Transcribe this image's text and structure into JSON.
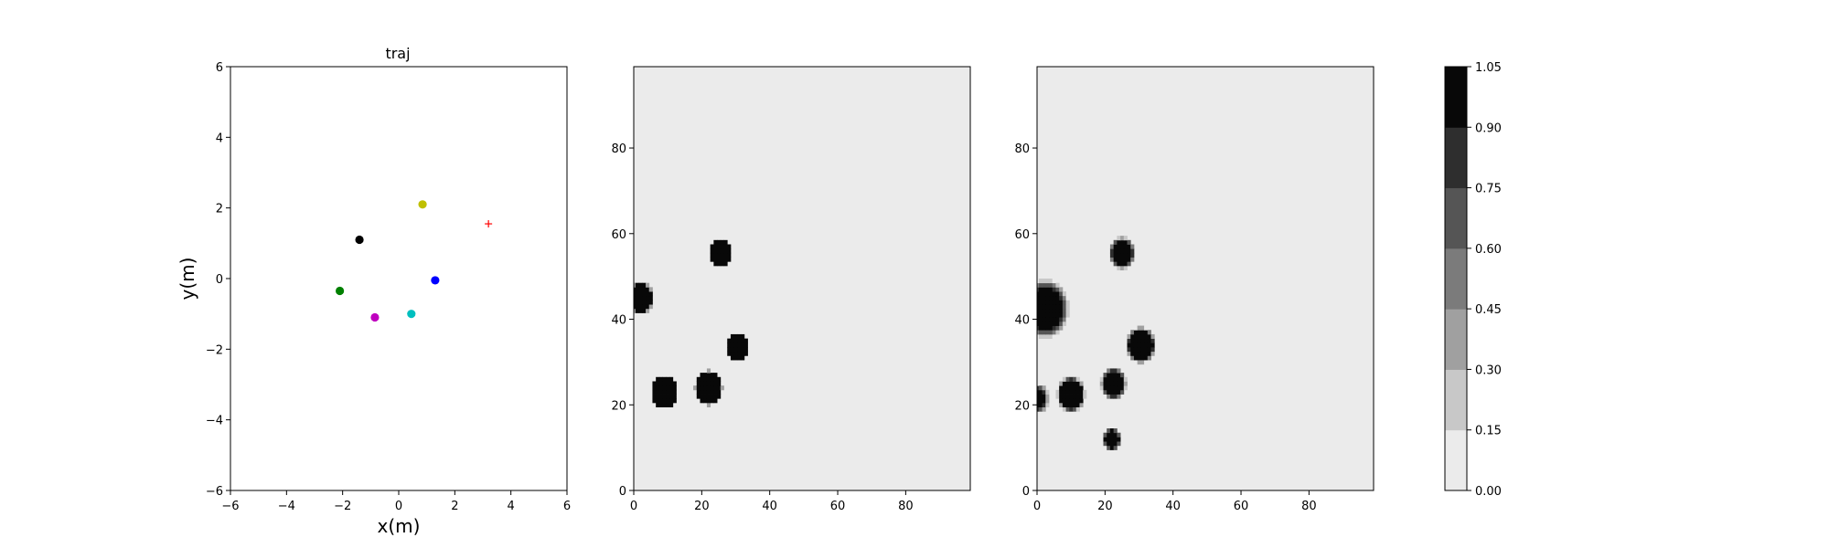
{
  "figure": {
    "background": "#ffffff",
    "axis_color": "#000000"
  },
  "chart_data": [
    {
      "type": "scatter",
      "title": "traj",
      "xlabel": "x(m)",
      "ylabel": "y(m)",
      "xlim": [
        -6,
        6
      ],
      "ylim": [
        -6,
        6
      ],
      "xticks": [
        -6,
        -4,
        -2,
        0,
        2,
        4,
        6
      ],
      "yticks": [
        -6,
        -4,
        -2,
        0,
        2,
        4,
        6
      ],
      "grid": false,
      "points": [
        {
          "x": 0.85,
          "y": 2.1,
          "color": "#bfbf00",
          "marker": "circle"
        },
        {
          "x": -1.4,
          "y": 1.1,
          "color": "#000000",
          "marker": "circle"
        },
        {
          "x": 1.3,
          "y": -0.05,
          "color": "#0000ff",
          "marker": "circle"
        },
        {
          "x": -2.1,
          "y": -0.35,
          "color": "#008000",
          "marker": "circle"
        },
        {
          "x": -0.85,
          "y": -1.1,
          "color": "#bf00bf",
          "marker": "circle"
        },
        {
          "x": 0.45,
          "y": -1.0,
          "color": "#00bfbf",
          "marker": "circle"
        }
      ],
      "goal": {
        "x": 3.2,
        "y": 1.55,
        "color": "#ff0000",
        "marker": "plus"
      }
    },
    {
      "type": "heatmap",
      "title": "",
      "xlim": [
        0,
        99
      ],
      "ylim": [
        0,
        99
      ],
      "xticks": [
        0,
        20,
        40,
        60,
        80
      ],
      "yticks": [
        0,
        20,
        40,
        60,
        80
      ],
      "background_value": 0.05,
      "blobs": [
        {
          "x": 25.5,
          "y": 55.5,
          "r": 3.2,
          "soft": 0.2
        },
        {
          "x": 2.0,
          "y": 45.0,
          "r": 3.4,
          "soft": 0.3
        },
        {
          "x": 30.5,
          "y": 33.5,
          "r": 3.2,
          "soft": 0.2
        },
        {
          "x": 9.0,
          "y": 23.0,
          "r": 3.6,
          "soft": 0.3
        },
        {
          "x": 22.0,
          "y": 24.0,
          "r": 3.8,
          "soft": 0.3
        }
      ]
    },
    {
      "type": "heatmap",
      "title": "",
      "xlim": [
        0,
        99
      ],
      "ylim": [
        0,
        99
      ],
      "xticks": [
        0,
        20,
        40,
        60,
        80
      ],
      "yticks": [
        0,
        20,
        40,
        60,
        80
      ],
      "background_value": 0.05,
      "blobs": [
        {
          "x": 25.0,
          "y": 55.5,
          "r": 2.9,
          "soft": 1.0
        },
        {
          "x": 2.5,
          "y": 42.5,
          "r": 4.8,
          "soft": 2.2
        },
        {
          "x": 30.5,
          "y": 34.0,
          "r": 3.5,
          "soft": 0.8
        },
        {
          "x": 22.5,
          "y": 25.0,
          "r": 2.8,
          "soft": 1.0
        },
        {
          "x": 10.0,
          "y": 22.5,
          "r": 3.3,
          "soft": 0.9
        },
        {
          "x": 0.0,
          "y": 21.5,
          "r": 2.2,
          "soft": 1.4
        },
        {
          "x": 22.0,
          "y": 12.0,
          "r": 2.0,
          "soft": 0.7
        }
      ]
    }
  ],
  "colorbar": {
    "levels": [
      "0.00",
      "0.15",
      "0.30",
      "0.45",
      "0.60",
      "0.75",
      "0.90",
      "1.05"
    ],
    "colors": [
      "#ebebeb",
      "#c8c8c8",
      "#a0a0a0",
      "#7b7b7b",
      "#555555",
      "#2e2e2e",
      "#080808"
    ]
  }
}
